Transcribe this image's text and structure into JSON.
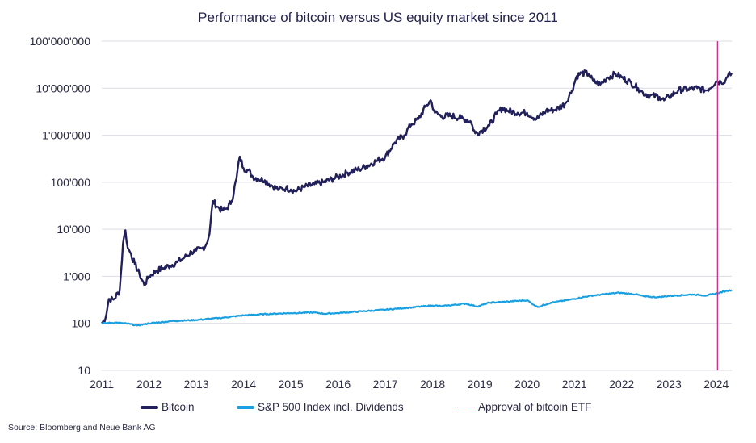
{
  "chart_data": {
    "type": "line",
    "title": "Performance of bitcoin versus US equity market since 2011",
    "y_scale": "log",
    "ylim": [
      10,
      100000000
    ],
    "y_ticks": [
      "100'000'000",
      "10'000'000",
      "1'000'000",
      "100'000",
      "10'000",
      "1'000",
      "100",
      "10"
    ],
    "y_tick_values": [
      100000000,
      10000000,
      1000000,
      100000,
      10000,
      1000,
      100,
      10
    ],
    "xlim": [
      2011.0,
      2024.33
    ],
    "x_ticks": [
      "2011",
      "2012",
      "2013",
      "2014",
      "2015",
      "2016",
      "2017",
      "2018",
      "2019",
      "2020",
      "2021",
      "2022",
      "2023",
      "2024"
    ],
    "x_tick_values": [
      2011,
      2012,
      2013,
      2014,
      2015,
      2016,
      2017,
      2018,
      2019,
      2020,
      2021,
      2022,
      2023,
      2024
    ],
    "grid": "horizontal",
    "legend_position": "bottom",
    "series": [
      {
        "name": "Bitcoin",
        "color": "#22205a",
        "x": [
          2011.0,
          2011.08,
          2011.15,
          2011.25,
          2011.38,
          2011.45,
          2011.5,
          2011.55,
          2011.62,
          2011.7,
          2011.8,
          2011.9,
          2012.0,
          2012.15,
          2012.3,
          2012.45,
          2012.6,
          2012.75,
          2012.9,
          2013.0,
          2013.12,
          2013.2,
          2013.28,
          2013.35,
          2013.45,
          2013.55,
          2013.65,
          2013.75,
          2013.85,
          2013.92,
          2014.0,
          2014.1,
          2014.2,
          2014.3,
          2014.45,
          2014.6,
          2014.75,
          2014.9,
          2015.0,
          2015.1,
          2015.3,
          2015.5,
          2015.7,
          2015.9,
          2016.0,
          2016.2,
          2016.45,
          2016.6,
          2016.8,
          2017.0,
          2017.2,
          2017.4,
          2017.55,
          2017.7,
          2017.85,
          2017.96,
          2018.05,
          2018.2,
          2018.4,
          2018.6,
          2018.8,
          2018.9,
          2019.0,
          2019.2,
          2019.35,
          2019.48,
          2019.6,
          2019.8,
          2020.0,
          2020.2,
          2020.4,
          2020.6,
          2020.8,
          2020.95,
          2021.05,
          2021.15,
          2021.3,
          2021.4,
          2021.55,
          2021.7,
          2021.87,
          2022.0,
          2022.2,
          2022.35,
          2022.45,
          2022.6,
          2022.8,
          2022.9,
          2023.0,
          2023.2,
          2023.4,
          2023.6,
          2023.8,
          2024.0,
          2024.1,
          2024.2,
          2024.28,
          2024.33
        ],
        "values": [
          100,
          130,
          330,
          320,
          500,
          5000,
          9500,
          4000,
          3000,
          1800,
          1100,
          650,
          1000,
          1300,
          1500,
          1700,
          2000,
          2500,
          3300,
          3500,
          3900,
          4500,
          8000,
          40000,
          30000,
          25000,
          28000,
          40000,
          120000,
          350000,
          200000,
          180000,
          130000,
          120000,
          110000,
          85000,
          70000,
          75000,
          70000,
          65000,
          80000,
          90000,
          100000,
          120000,
          130000,
          160000,
          190000,
          220000,
          280000,
          350000,
          700000,
          1000000,
          1700000,
          2200000,
          4000000,
          5500000,
          3000000,
          2500000,
          2600000,
          2300000,
          2000000,
          1100000,
          1200000,
          1600000,
          2800000,
          3800000,
          3300000,
          3000000,
          3000000,
          2200000,
          3300000,
          3500000,
          4600000,
          9000000,
          18000000,
          21000000,
          20000000,
          14000000,
          12000000,
          17000000,
          20000000,
          17000000,
          13000000,
          10000000,
          8000000,
          7000000,
          6500000,
          5500000,
          6500000,
          9000000,
          9500000,
          10000000,
          9000000,
          14000000,
          13500000,
          15000000,
          22000000,
          21000000
        ]
      },
      {
        "name": "S&P 500 Index incl. Dividends",
        "color": "#1a9fe0",
        "x": [
          2011.0,
          2011.3,
          2011.6,
          2011.75,
          2011.9,
          2012.0,
          2012.5,
          2013.0,
          2013.5,
          2014.0,
          2014.5,
          2015.0,
          2015.5,
          2015.7,
          2016.0,
          2016.5,
          2017.0,
          2017.5,
          2018.0,
          2018.2,
          2018.7,
          2018.95,
          2019.2,
          2019.6,
          2020.0,
          2020.15,
          2020.22,
          2020.5,
          2020.9,
          2021.3,
          2021.7,
          2021.95,
          2022.3,
          2022.5,
          2022.78,
          2023.0,
          2023.5,
          2023.8,
          2024.0,
          2024.2,
          2024.33
        ],
        "values": [
          100,
          104,
          97,
          90,
          96,
          100,
          112,
          118,
          130,
          148,
          158,
          165,
          170,
          160,
          165,
          180,
          195,
          215,
          240,
          232,
          262,
          228,
          275,
          290,
          310,
          245,
          222,
          275,
          318,
          380,
          425,
          448,
          415,
          370,
          360,
          382,
          412,
          390,
          432,
          485,
          510
        ]
      },
      {
        "name": "Approval of bitcoin ETF",
        "color": "#c9348e",
        "x": [
          2024.03,
          2024.03
        ],
        "values": [
          10,
          100000000
        ]
      }
    ]
  },
  "footer": {
    "source": "Source: Bloomberg and Neue Bank AG"
  }
}
